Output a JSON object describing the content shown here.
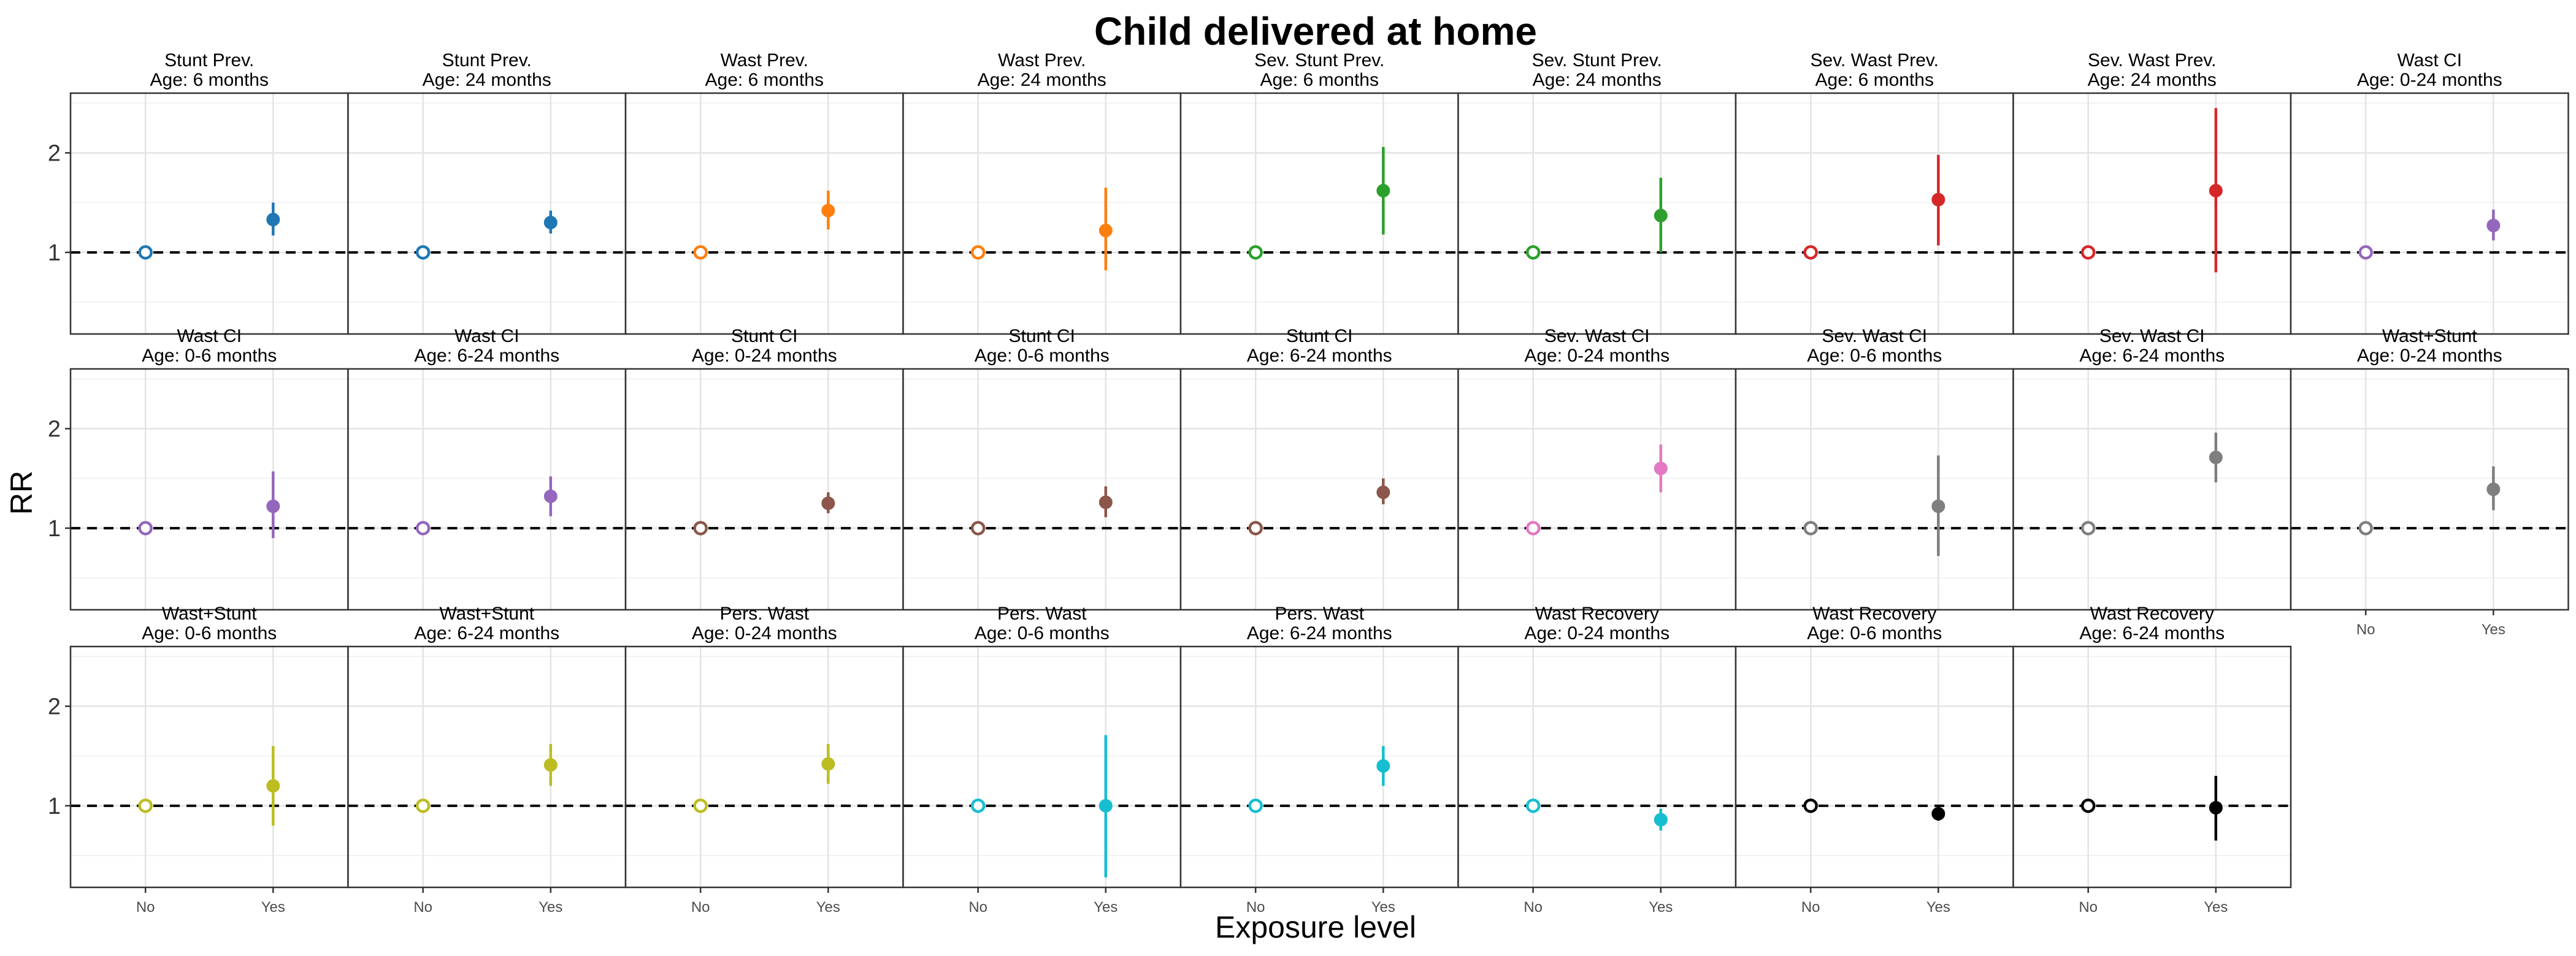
{
  "chart_data": {
    "type": "scatter",
    "subtype": "point-range facets",
    "title": "Child delivered at home",
    "xlabel": "Exposure level",
    "ylabel": "RR",
    "x_categories": [
      "No",
      "Yes"
    ],
    "y_ticks": [
      1,
      2
    ],
    "ylim": [
      0.18,
      2.6
    ],
    "reference_line": 1,
    "grid": true,
    "panels": [
      {
        "line1": "Stunt Prev.",
        "line2": "Age: 6 months",
        "color": "#1f77b4",
        "no": 1,
        "yes": 1.33,
        "lower": 1.17,
        "upper": 1.5
      },
      {
        "line1": "Stunt Prev.",
        "line2": "Age: 24 months",
        "color": "#1f77b4",
        "no": 1,
        "yes": 1.3,
        "lower": 1.19,
        "upper": 1.42
      },
      {
        "line1": "Wast Prev.",
        "line2": "Age: 6 months",
        "color": "#ff7f0e",
        "no": 1,
        "yes": 1.42,
        "lower": 1.23,
        "upper": 1.62
      },
      {
        "line1": "Wast Prev.",
        "line2": "Age: 24 months",
        "color": "#ff7f0e",
        "no": 1,
        "yes": 1.22,
        "lower": 0.82,
        "upper": 1.65
      },
      {
        "line1": "Sev. Stunt Prev.",
        "line2": "Age: 6 months",
        "color": "#2ca02c",
        "no": 1,
        "yes": 1.62,
        "lower": 1.18,
        "upper": 2.06
      },
      {
        "line1": "Sev. Stunt Prev.",
        "line2": "Age: 24 months",
        "color": "#2ca02c",
        "no": 1,
        "yes": 1.37,
        "lower": 1.0,
        "upper": 1.75
      },
      {
        "line1": "Sev. Wast Prev.",
        "line2": "Age: 6 months",
        "color": "#d62728",
        "no": 1,
        "yes": 1.53,
        "lower": 1.07,
        "upper": 1.98
      },
      {
        "line1": "Sev. Wast Prev.",
        "line2": "Age: 24 months",
        "color": "#d62728",
        "no": 1,
        "yes": 1.62,
        "lower": 0.8,
        "upper": 2.45
      },
      {
        "line1": "Wast CI",
        "line2": "Age: 0-24 months",
        "color": "#9467bd",
        "no": 1,
        "yes": 1.27,
        "lower": 1.12,
        "upper": 1.43
      },
      {
        "line1": "Wast CI",
        "line2": "Age: 0-6 months",
        "color": "#9467bd",
        "no": 1,
        "yes": 1.22,
        "lower": 0.9,
        "upper": 1.57
      },
      {
        "line1": "Wast CI",
        "line2": "Age: 6-24 months",
        "color": "#9467bd",
        "no": 1,
        "yes": 1.32,
        "lower": 1.12,
        "upper": 1.52
      },
      {
        "line1": "Stunt CI",
        "line2": "Age: 0-24 months",
        "color": "#8c564b",
        "no": 1,
        "yes": 1.25,
        "lower": 1.15,
        "upper": 1.36
      },
      {
        "line1": "Stunt CI",
        "line2": "Age: 0-6 months",
        "color": "#8c564b",
        "no": 1,
        "yes": 1.26,
        "lower": 1.11,
        "upper": 1.42
      },
      {
        "line1": "Stunt CI",
        "line2": "Age: 6-24 months",
        "color": "#8c564b",
        "no": 1,
        "yes": 1.36,
        "lower": 1.24,
        "upper": 1.5
      },
      {
        "line1": "Sev. Wast CI",
        "line2": "Age: 0-24 months",
        "color": "#e377c2",
        "no": 1,
        "yes": 1.6,
        "lower": 1.36,
        "upper": 1.84
      },
      {
        "line1": "Sev. Wast CI",
        "line2": "Age: 0-6 months",
        "color": "#7f7f7f",
        "no": 1,
        "yes": 1.22,
        "lower": 0.72,
        "upper": 1.73
      },
      {
        "line1": "Sev. Wast CI",
        "line2": "Age: 6-24 months",
        "color": "#7f7f7f",
        "no": 1,
        "yes": 1.71,
        "lower": 1.46,
        "upper": 1.96
      },
      {
        "line1": "Wast+Stunt",
        "line2": "Age: 0-24 months",
        "color": "#7f7f7f",
        "no": 1,
        "yes": 1.39,
        "lower": 1.18,
        "upper": 1.62
      },
      {
        "line1": "Wast+Stunt",
        "line2": "Age: 0-6 months",
        "color": "#bcbd22",
        "no": 1,
        "yes": 1.2,
        "lower": 0.8,
        "upper": 1.6
      },
      {
        "line1": "Wast+Stunt",
        "line2": "Age: 6-24 months",
        "color": "#bcbd22",
        "no": 1,
        "yes": 1.41,
        "lower": 1.2,
        "upper": 1.62
      },
      {
        "line1": "Pers. Wast",
        "line2": "Age: 0-24 months",
        "color": "#bcbd22",
        "no": 1,
        "yes": 1.42,
        "lower": 1.22,
        "upper": 1.62
      },
      {
        "line1": "Pers. Wast",
        "line2": "Age: 0-6 months",
        "color": "#17becf",
        "no": 1,
        "yes": 1.0,
        "lower": 0.28,
        "upper": 1.71
      },
      {
        "line1": "Pers. Wast",
        "line2": "Age: 6-24 months",
        "color": "#17becf",
        "no": 1,
        "yes": 1.4,
        "lower": 1.2,
        "upper": 1.6
      },
      {
        "line1": "Wast Recovery",
        "line2": "Age: 0-24 months",
        "color": "#17becf",
        "no": 1,
        "yes": 0.86,
        "lower": 0.75,
        "upper": 0.97
      },
      {
        "line1": "Wast Recovery",
        "line2": "Age: 0-6 months",
        "color": "#000000",
        "no": 1,
        "yes": 0.92,
        "lower": 0.85,
        "upper": 0.99
      },
      {
        "line1": "Wast Recovery",
        "line2": "Age: 6-24 months",
        "color": "#000000",
        "no": 1,
        "yes": 0.98,
        "lower": 0.65,
        "upper": 1.3
      }
    ]
  }
}
